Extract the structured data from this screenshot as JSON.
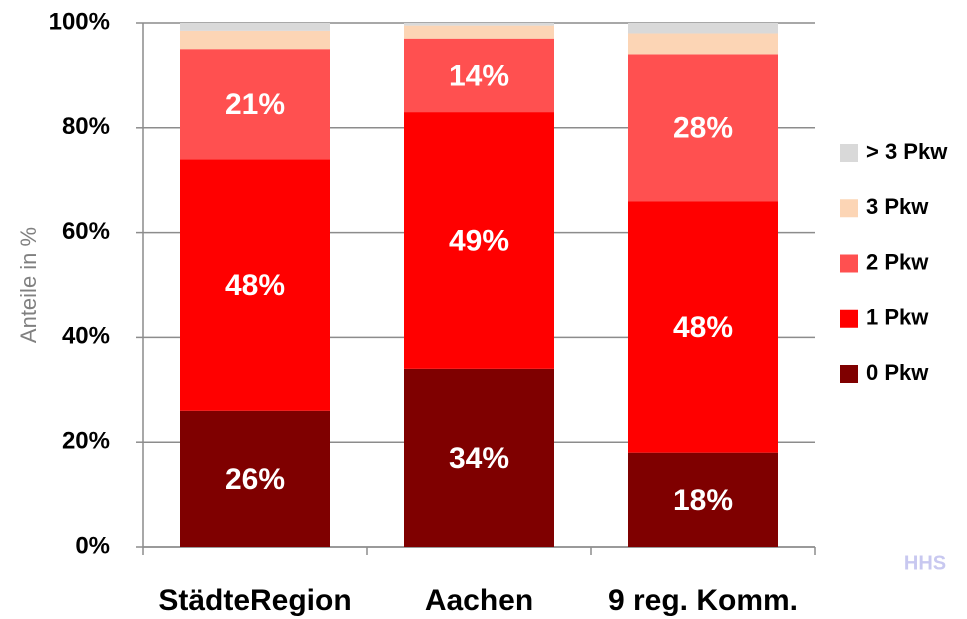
{
  "chart_data": {
    "type": "stacked-bar",
    "y_label": "Anteile in %",
    "categories": [
      "StädteRegion",
      "Aachen",
      "9 reg. Komm."
    ],
    "series": [
      {
        "name": "0 Pkw",
        "color": "#7f0000",
        "values": [
          26,
          34,
          18
        ],
        "value_labels": [
          "26%",
          "34%",
          "18%"
        ]
      },
      {
        "name": "1 Pkw",
        "color": "#ff0000",
        "values": [
          48,
          49,
          48
        ],
        "value_labels": [
          "48%",
          "49%",
          "48%"
        ]
      },
      {
        "name": "2 Pkw",
        "color": "#ff5050",
        "values": [
          21,
          14,
          28
        ],
        "value_labels": [
          "21%",
          "14%",
          "28%"
        ]
      },
      {
        "name": "3 Pkw",
        "color": "#fcd5b5",
        "values": [
          3.5,
          2.5,
          4
        ]
      },
      {
        "name": "> 3 Pkw",
        "color": "#d9d9d9",
        "values": [
          1.5,
          0.5,
          2
        ]
      }
    ],
    "ylim": [
      0,
      100
    ],
    "yticks": [
      {
        "value": 0,
        "label": "0%"
      },
      {
        "value": 20,
        "label": "20%"
      },
      {
        "value": 40,
        "label": "40%"
      },
      {
        "value": 60,
        "label": "60%"
      },
      {
        "value": 80,
        "label": "80%"
      },
      {
        "value": 100,
        "label": "100%"
      }
    ],
    "grid": true,
    "legend": "right",
    "watermark": "HHS"
  }
}
